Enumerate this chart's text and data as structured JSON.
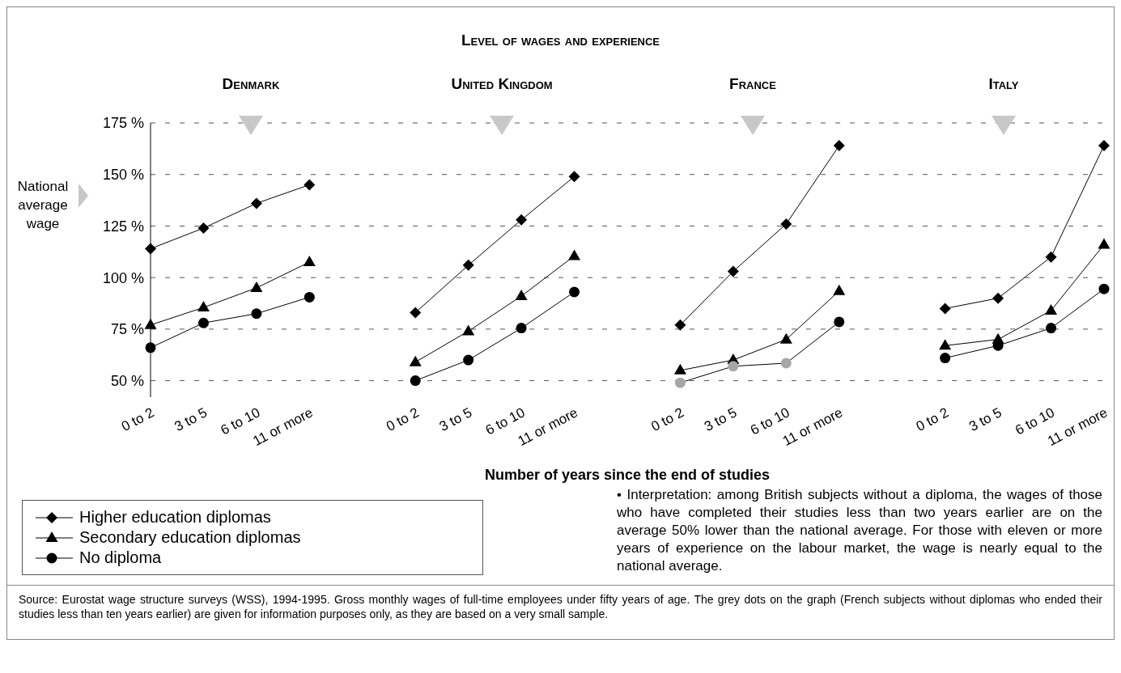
{
  "chart_data": {
    "type": "line",
    "title": "Level of wages and experience",
    "xlabel": "Number of years since the end of studies",
    "ylabel": "National average wage",
    "categories": [
      "0 to 2",
      "3 to 5",
      "6 to 10",
      "11 or more",
      null,
      "0 to 2",
      "3 to 5",
      "6 to 10",
      "11 or more",
      null,
      "0 to 2",
      "3 to 5",
      "6 to 10",
      "11 or more",
      null,
      "0 to 2",
      "3 to 5",
      "6 to 10",
      "11 or more"
    ],
    "series": [
      {
        "name": "Higher education diplomas",
        "color": "#000000",
        "marker": "diamond",
        "values": [
          114,
          124,
          136,
          145,
          null,
          83,
          106,
          128,
          149,
          null,
          77,
          103,
          126,
          164,
          null,
          85,
          90,
          110,
          164
        ]
      },
      {
        "name": "Secondary education diplomas",
        "color": "#000000",
        "marker": "triangle",
        "values": [
          77,
          85.5,
          95,
          107.5,
          null,
          59,
          74,
          91,
          110.5,
          null,
          55,
          60,
          70,
          93.5,
          null,
          67,
          70,
          84,
          116
        ]
      },
      {
        "name": "No diploma",
        "color": "#000000",
        "marker": "circle",
        "colors": [
          "#000000",
          "#000000",
          "#000000",
          "#000000",
          null,
          "#000000",
          "#000000",
          "#000000",
          "#000000",
          null,
          "#a6a6a6",
          "#a6a6a6",
          "#a6a6a6",
          "#000000",
          null,
          "#000000",
          "#000000",
          "#000000",
          "#000000"
        ],
        "values": [
          66,
          78,
          82.5,
          90.5,
          null,
          50,
          60,
          75.5,
          93,
          null,
          49,
          57,
          58.5,
          78.5,
          null,
          61,
          67,
          75.5,
          94.5
        ]
      }
    ],
    "ylim": [
      42,
      175
    ],
    "yticks": [
      {
        "value": 50,
        "label": "50 %"
      },
      {
        "value": 75,
        "label": "75 %"
      },
      {
        "value": 100,
        "label": "100 %"
      },
      {
        "value": 125,
        "label": "125 %"
      },
      {
        "value": 150,
        "label": "150 %"
      },
      {
        "value": 175,
        "label": "175 %"
      }
    ],
    "grid": "y",
    "legend": "bottom left",
    "line_style": "solid",
    "annotations": [
      "Denmark",
      "United Kingdom",
      "France",
      "Italy",
      "• Interpretation: among British subjects without a diploma, the wages of those who have completed their studies less than two years earlier are on the average 50% lower than the national average. For those with eleven or more years of experience on the labour market, the wage is nearly equal to the national average.",
      "Source: Eurostat wage structure surveys (WSS), 1994-1995. Gross monthly wages of full-time employees under fifty years of age. The grey dots on the graph (French subjects without diplomas who ended their studies less than ten years earlier) are given for information purposes only, as they are based on a very small sample."
    ]
  }
}
